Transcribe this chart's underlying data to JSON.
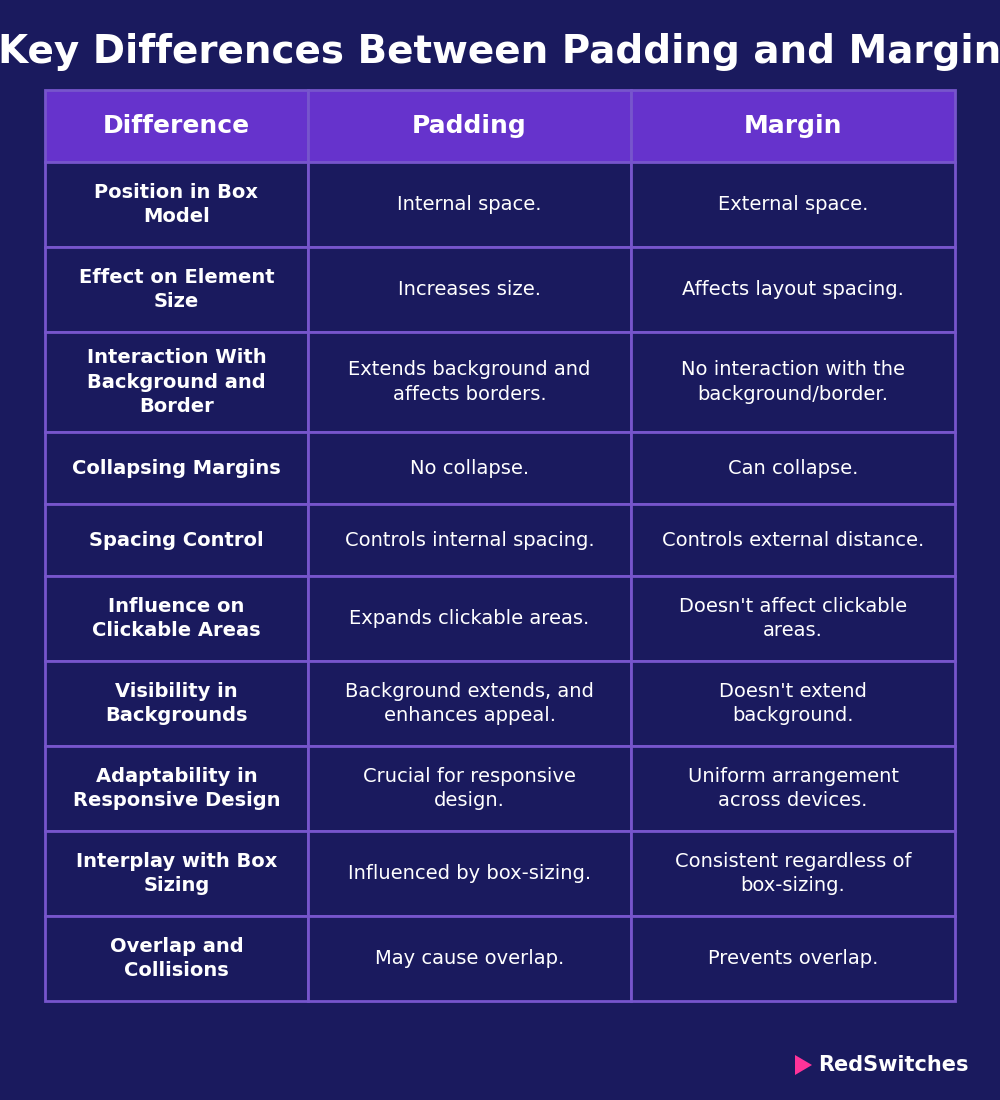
{
  "title": "Key Differences Between Padding and Margin",
  "bg_color": "#1a1a5e",
  "header_color": "#6633cc",
  "header_text_color": "#ffffff",
  "row_bg_color": "#1a1a5e",
  "row_text_color": "#ffffff",
  "border_color": "#7755cc",
  "col1_label": "Difference",
  "col2_label": "Padding",
  "col3_label": "Margin",
  "rows": [
    {
      "col1": "Position in Box\nModel",
      "col2": "Internal space.",
      "col3": "External space.",
      "lines": 2
    },
    {
      "col1": "Effect on Element\nSize",
      "col2": "Increases size.",
      "col3": "Affects layout spacing.",
      "lines": 2
    },
    {
      "col1": "Interaction With\nBackground and\nBorder",
      "col2": "Extends background and\naffects borders.",
      "col3": "No interaction with the\nbackground/border.",
      "lines": 3
    },
    {
      "col1": "Collapsing Margins",
      "col2": "No collapse.",
      "col3": "Can collapse.",
      "lines": 1
    },
    {
      "col1": "Spacing Control",
      "col2": "Controls internal spacing.",
      "col3": "Controls external distance.",
      "lines": 1
    },
    {
      "col1": "Influence on\nClickable Areas",
      "col2": "Expands clickable areas.",
      "col3": "Doesn't affect clickable\nareas.",
      "lines": 2
    },
    {
      "col1": "Visibility in\nBackgrounds",
      "col2": "Background extends, and\nenhances appeal.",
      "col3": "Doesn't extend\nbackground.",
      "lines": 2
    },
    {
      "col1": "Adaptability in\nResponsive Design",
      "col2": "Crucial for responsive\ndesign.",
      "col3": "Uniform arrangement\nacross devices.",
      "lines": 2
    },
    {
      "col1": "Interplay with Box\nSizing",
      "col2": "Influenced by box-sizing.",
      "col3": "Consistent regardless of\nbox-sizing.",
      "lines": 2
    },
    {
      "col1": "Overlap and\nCollisions",
      "col2": "May cause overlap.",
      "col3": "Prevents overlap.",
      "lines": 2
    }
  ],
  "footer_logo_text": "RedSwitches",
  "title_fontsize": 28,
  "header_fontsize": 18,
  "row_col1_fontsize": 14,
  "row_col23_fontsize": 14
}
